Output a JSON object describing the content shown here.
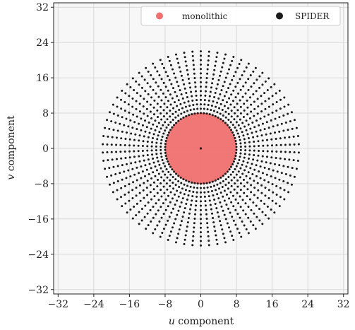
{
  "chart_data": {
    "type": "scatter",
    "title": "",
    "xlabel": {
      "var": "u",
      "rest": " component"
    },
    "ylabel": {
      "var": "v",
      "rest": " component"
    },
    "xlim": [
      -33,
      33
    ],
    "ylim": [
      -33,
      33
    ],
    "xticks": [
      -32,
      -24,
      -16,
      -8,
      0,
      8,
      16,
      24,
      32
    ],
    "yticks": [
      -32,
      -24,
      -16,
      -8,
      0,
      8,
      16,
      24,
      32
    ],
    "tick_labels": [
      "−32",
      "−24",
      "−16",
      "−8",
      "0",
      "8",
      "16",
      "24",
      "32"
    ],
    "grid": true,
    "legend_position": "top-right",
    "series": [
      {
        "name": "monolithic",
        "kind": "filled-disk",
        "color": "#f07070",
        "center": [
          0,
          0
        ],
        "radius": 8
      },
      {
        "name": "SPIDER",
        "kind": "polar-grid-points",
        "color": "#1a1a1a",
        "spokes": 74,
        "radii": [
          0,
          8,
          9,
          10,
          11,
          12,
          13,
          14,
          15,
          16,
          17,
          18,
          19,
          20,
          21,
          22
        ]
      }
    ],
    "colors": {
      "plot_bg": "#f7f7f7",
      "grid": "#d9d9d9",
      "frame": "#222222"
    }
  }
}
